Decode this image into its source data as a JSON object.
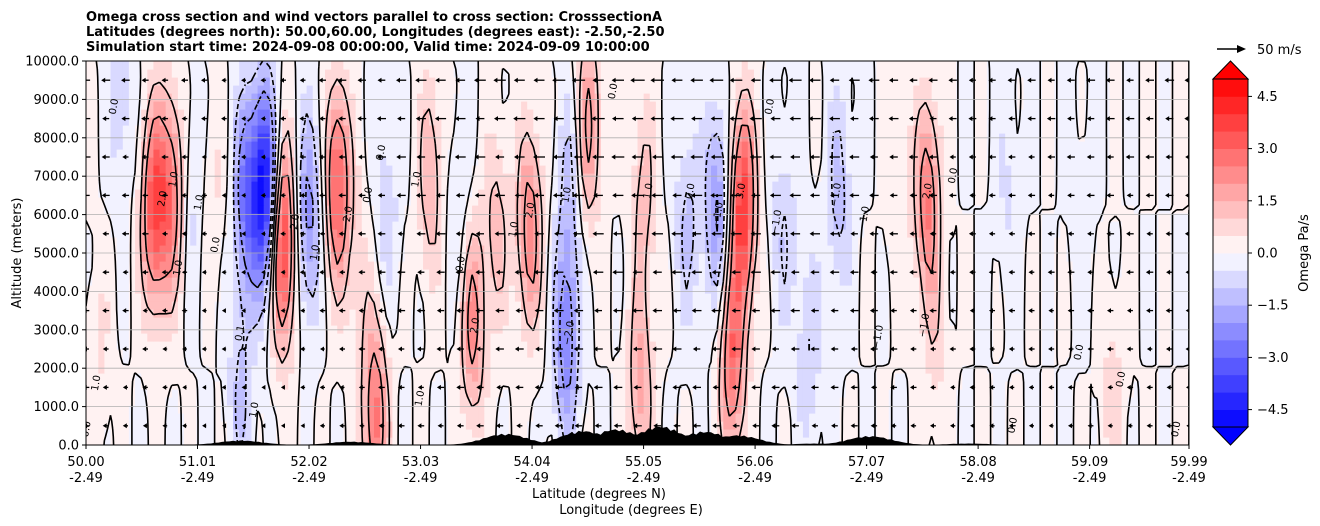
{
  "chart_data": {
    "type": "contour",
    "title_lines": [
      "Omega cross section and wind vectors parallel to cross section: CrosssectionA",
      "Latitudes (degrees north): 50.00,60.00, Longitudes (degrees east): -2.50,-2.50",
      "Simulation start time: 2024-09-08 00:00:00, Valid time: 2024-09-09 10:00:00"
    ],
    "ylabel": "Altitude (meters)",
    "xlabel_lines": [
      "Latitude (degrees N)",
      "Longitude (degrees E)"
    ],
    "ylim": [
      0,
      10000
    ],
    "xlim": [
      50.0,
      59.99
    ],
    "yticks": [
      {
        "value": 0,
        "label": "0.0"
      },
      {
        "value": 1000,
        "label": "1000.0"
      },
      {
        "value": 2000,
        "label": "2000.0"
      },
      {
        "value": 3000,
        "label": "3000.0"
      },
      {
        "value": 4000,
        "label": "4000.0"
      },
      {
        "value": 5000,
        "label": "5000.0"
      },
      {
        "value": 6000,
        "label": "6000.0"
      },
      {
        "value": 7000,
        "label": "7000.0"
      },
      {
        "value": 8000,
        "label": "8000.0"
      },
      {
        "value": 9000,
        "label": "9000.0"
      },
      {
        "value": 10000,
        "label": "10000.0"
      }
    ],
    "xticks": [
      {
        "value": 50.0,
        "lat": "50.00",
        "lon": "-2.49"
      },
      {
        "value": 51.01,
        "lat": "51.01",
        "lon": "-2.49"
      },
      {
        "value": 52.02,
        "lat": "52.02",
        "lon": "-2.49"
      },
      {
        "value": 53.03,
        "lat": "53.03",
        "lon": "-2.49"
      },
      {
        "value": 54.04,
        "lat": "54.04",
        "lon": "-2.49"
      },
      {
        "value": 55.05,
        "lat": "55.05",
        "lon": "-2.49"
      },
      {
        "value": 56.06,
        "lat": "56.06",
        "lon": "-2.49"
      },
      {
        "value": 57.07,
        "lat": "57.07",
        "lon": "-2.49"
      },
      {
        "value": 58.08,
        "lat": "58.08",
        "lon": "-2.49"
      },
      {
        "value": 59.09,
        "lat": "59.09",
        "lon": "-2.49"
      },
      {
        "value": 59.99,
        "lat": "59.99",
        "lon": "-2.49"
      }
    ],
    "grid": "horizontal",
    "quiver_key_label": "50 m/s",
    "colorbar": {
      "label": "Omega Pa/s",
      "range": [
        -5.0,
        5.0
      ],
      "levels": 20,
      "extend": "both",
      "ticks": [
        {
          "value": 4.5,
          "label": "4.5"
        },
        {
          "value": 3.0,
          "label": "3.0"
        },
        {
          "value": 1.5,
          "label": "1.5"
        },
        {
          "value": 0.0,
          "label": "0.0"
        },
        {
          "value": -1.5,
          "label": "−1.5"
        },
        {
          "value": -3.0,
          "label": "−3.0"
        },
        {
          "value": -4.5,
          "label": "−4.5"
        }
      ]
    },
    "omega_features": [
      {
        "lat": 50.12,
        "alt": 2500,
        "value": 0.6
      },
      {
        "lat": 50.32,
        "alt": 9000,
        "value": -0.9
      },
      {
        "lat": 50.62,
        "alt": 6200,
        "value": 3.6
      },
      {
        "lat": 50.78,
        "alt": 6500,
        "value": 2.6
      },
      {
        "lat": 50.95,
        "alt": 6500,
        "value": -0.8
      },
      {
        "lat": 51.15,
        "alt": 6600,
        "value": 0.6
      },
      {
        "lat": 51.45,
        "alt": 6500,
        "value": -2.8
      },
      {
        "lat": 51.62,
        "alt": 6700,
        "value": -5.0
      },
      {
        "lat": 51.78,
        "alt": 5200,
        "value": 4.2
      },
      {
        "lat": 52.02,
        "alt": 6000,
        "value": -2.3
      },
      {
        "lat": 52.28,
        "alt": 6800,
        "value": 3.4
      },
      {
        "lat": 52.48,
        "alt": 4200,
        "value": 0.7
      },
      {
        "lat": 52.72,
        "alt": 6200,
        "value": -0.9
      },
      {
        "lat": 53.12,
        "alt": 7000,
        "value": 1.6
      },
      {
        "lat": 53.38,
        "alt": 6000,
        "value": -0.7
      },
      {
        "lat": 53.72,
        "alt": 5600,
        "value": 1.3
      },
      {
        "lat": 54.02,
        "alt": 5600,
        "value": 2.6
      },
      {
        "lat": 54.38,
        "alt": 6800,
        "value": -1.2
      },
      {
        "lat": 54.55,
        "alt": 8300,
        "value": 2.2
      },
      {
        "lat": 55.05,
        "alt": 6500,
        "value": 1.3
      },
      {
        "lat": 55.45,
        "alt": 5800,
        "value": -1.2
      },
      {
        "lat": 55.72,
        "alt": 6200,
        "value": -2.2
      },
      {
        "lat": 55.95,
        "alt": 6200,
        "value": 4.1
      },
      {
        "lat": 56.32,
        "alt": 5600,
        "value": -1.0
      },
      {
        "lat": 56.82,
        "alt": 6600,
        "value": -1.3
      },
      {
        "lat": 57.35,
        "alt": 7200,
        "value": 0.6
      },
      {
        "lat": 57.62,
        "alt": 6400,
        "value": 2.7
      },
      {
        "lat": 58.35,
        "alt": 6600,
        "value": -0.6
      },
      {
        "lat": 59.02,
        "alt": 6000,
        "value": -0.4
      },
      {
        "lat": 53.5,
        "alt": 3200,
        "value": 2.4
      },
      {
        "lat": 54.35,
        "alt": 2800,
        "value": -2.6
      },
      {
        "lat": 55.02,
        "alt": 1500,
        "value": 1.8
      },
      {
        "lat": 55.85,
        "alt": 2200,
        "value": 3.0
      },
      {
        "lat": 56.55,
        "alt": 2600,
        "value": -1.0
      },
      {
        "lat": 57.7,
        "alt": 2800,
        "value": 0.7
      },
      {
        "lat": 52.62,
        "alt": 700,
        "value": 2.9
      },
      {
        "lat": 51.4,
        "alt": 1300,
        "value": -1.1
      },
      {
        "lat": 59.3,
        "alt": 1300,
        "value": 0.8
      }
    ],
    "contour_labels": [
      {
        "lat": 50.03,
        "alt": 400,
        "text": "0.0"
      },
      {
        "lat": 50.12,
        "alt": 1600,
        "text": "1.0"
      },
      {
        "lat": 50.28,
        "alt": 8800,
        "text": "0.0"
      },
      {
        "lat": 50.72,
        "alt": 6400,
        "text": "2.0"
      },
      {
        "lat": 50.82,
        "alt": 6900,
        "text": "1.0"
      },
      {
        "lat": 50.86,
        "alt": 4600,
        "text": "1.0"
      },
      {
        "lat": 51.05,
        "alt": 6300,
        "text": "1.0"
      },
      {
        "lat": 51.2,
        "alt": 5200,
        "text": "0.0"
      },
      {
        "lat": 51.42,
        "alt": 2900,
        "text": "0.1"
      },
      {
        "lat": 51.55,
        "alt": 900,
        "text": "1.0"
      },
      {
        "lat": 51.92,
        "alt": 5800,
        "text": "2.0"
      },
      {
        "lat": 52.1,
        "alt": 5000,
        "text": "1.0"
      },
      {
        "lat": 52.4,
        "alt": 6000,
        "text": "2.0"
      },
      {
        "lat": 52.58,
        "alt": 6500,
        "text": "0.0"
      },
      {
        "lat": 52.7,
        "alt": 7600,
        "text": "0.0"
      },
      {
        "lat": 53.02,
        "alt": 6900,
        "text": "1.0"
      },
      {
        "lat": 53.05,
        "alt": 1200,
        "text": "1.0"
      },
      {
        "lat": 53.42,
        "alt": 4700,
        "text": "0.0"
      },
      {
        "lat": 53.55,
        "alt": 3100,
        "text": "2.0"
      },
      {
        "lat": 53.9,
        "alt": 5600,
        "text": "1.0"
      },
      {
        "lat": 54.05,
        "alt": 6100,
        "text": "2.0"
      },
      {
        "lat": 54.38,
        "alt": 6500,
        "text": "1.0"
      },
      {
        "lat": 54.4,
        "alt": 2900,
        "text": "−2.0"
      },
      {
        "lat": 54.8,
        "alt": 9200,
        "text": "0.0"
      },
      {
        "lat": 55.12,
        "alt": 6600,
        "text": "1.0"
      },
      {
        "lat": 55.5,
        "alt": 6600,
        "text": "0.0"
      },
      {
        "lat": 55.75,
        "alt": 6000,
        "text": "−1.0"
      },
      {
        "lat": 55.96,
        "alt": 6600,
        "text": "3.0"
      },
      {
        "lat": 56.22,
        "alt": 8800,
        "text": "0.0"
      },
      {
        "lat": 56.28,
        "alt": 5800,
        "text": "−1.0"
      },
      {
        "lat": 56.82,
        "alt": 6500,
        "text": "−1.0"
      },
      {
        "lat": 57.08,
        "alt": 6000,
        "text": "1.0"
      },
      {
        "lat": 57.2,
        "alt": 2800,
        "text": "−1.0"
      },
      {
        "lat": 57.65,
        "alt": 6600,
        "text": "2.0"
      },
      {
        "lat": 57.88,
        "alt": 7000,
        "text": "0.0"
      },
      {
        "lat": 57.62,
        "alt": 3100,
        "text": "−1.0"
      },
      {
        "lat": 58.42,
        "alt": 500,
        "text": "0.0"
      },
      {
        "lat": 59.02,
        "alt": 2400,
        "text": "0.0"
      },
      {
        "lat": 59.4,
        "alt": 1700,
        "text": "0.0"
      },
      {
        "lat": 59.9,
        "alt": 400,
        "text": "0.0"
      }
    ],
    "terrain_peaks": [
      {
        "lat": 51.4,
        "alt": 120
      },
      {
        "lat": 52.4,
        "alt": 90
      },
      {
        "lat": 53.8,
        "alt": 300
      },
      {
        "lat": 54.5,
        "alt": 380
      },
      {
        "lat": 54.8,
        "alt": 420
      },
      {
        "lat": 55.2,
        "alt": 500
      },
      {
        "lat": 55.6,
        "alt": 360
      },
      {
        "lat": 55.9,
        "alt": 260
      },
      {
        "lat": 56.6,
        "alt": 40
      },
      {
        "lat": 57.1,
        "alt": 240
      },
      {
        "lat": 58.0,
        "alt": 40
      }
    ],
    "winds": {
      "direction": "toward decreasing latitude (southward)",
      "max_speed_ms": 9,
      "speed_profile": [
        {
          "lat": 50.0,
          "speed": 5
        },
        {
          "lat": 51.5,
          "speed": 2
        },
        {
          "lat": 53.0,
          "speed": 6
        },
        {
          "lat": 55.0,
          "speed": 8
        },
        {
          "lat": 56.5,
          "speed": 7
        },
        {
          "lat": 58.0,
          "speed": 4
        },
        {
          "lat": 59.99,
          "speed": 5
        }
      ]
    }
  }
}
